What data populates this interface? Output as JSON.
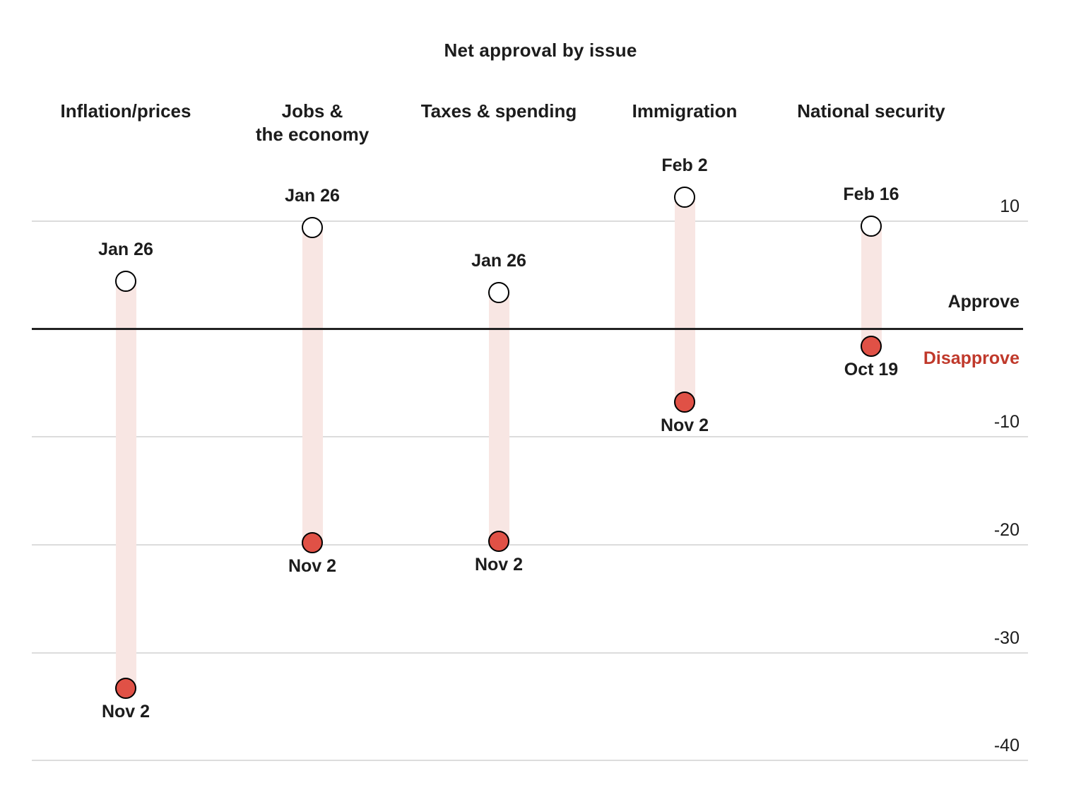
{
  "title": "Net approval by issue",
  "axis": {
    "approve_label": "Approve",
    "disapprove_label": "Disapprove",
    "tick_values": [
      10,
      -10,
      -20,
      -30,
      -40
    ],
    "tick_labels": [
      "10",
      "-10",
      "-20",
      "-30",
      "-40"
    ]
  },
  "colors": {
    "end_dot_red": "#e05146",
    "disapprove_text_red": "#c0392b",
    "band_pink": "#f8e6e3",
    "gridline_gray": "#dcdcdc",
    "zero_line_black": "#222222",
    "text_black": "#1c1c1c"
  },
  "chart_data": {
    "type": "dumbbell-range",
    "title": "Net approval by issue",
    "ylim": [
      -42,
      14
    ],
    "yticks": [
      10,
      0,
      -10,
      -20,
      -30,
      -40
    ],
    "grid": true,
    "legend_position": "right-of-zero-line",
    "zero_line_labels": {
      "above": "Approve",
      "below": "Disapprove"
    },
    "categories": [
      "Inflation/prices",
      "Jobs &\nthe economy",
      "Taxes & spending",
      "Immigration",
      "National security"
    ],
    "series": [
      {
        "issue": "Inflation/prices",
        "start": {
          "label": "Jan 26",
          "value": 4.4
        },
        "end": {
          "label": "Nov 2",
          "value": -33.3
        }
      },
      {
        "issue": "Jobs &\nthe economy",
        "start": {
          "label": "Jan 26",
          "value": 9.4
        },
        "end": {
          "label": "Nov 2",
          "value": -19.8
        }
      },
      {
        "issue": "Taxes & spending",
        "start": {
          "label": "Jan 26",
          "value": 3.4
        },
        "end": {
          "label": "Nov 2",
          "value": -19.7
        }
      },
      {
        "issue": "Immigration",
        "start": {
          "label": "Feb 2",
          "value": 12.2
        },
        "end": {
          "label": "Nov 2",
          "value": -6.8
        }
      },
      {
        "issue": "National security",
        "start": {
          "label": "Feb 16",
          "value": 9.5
        },
        "end": {
          "label": "Oct 19",
          "value": -1.6
        }
      }
    ]
  }
}
